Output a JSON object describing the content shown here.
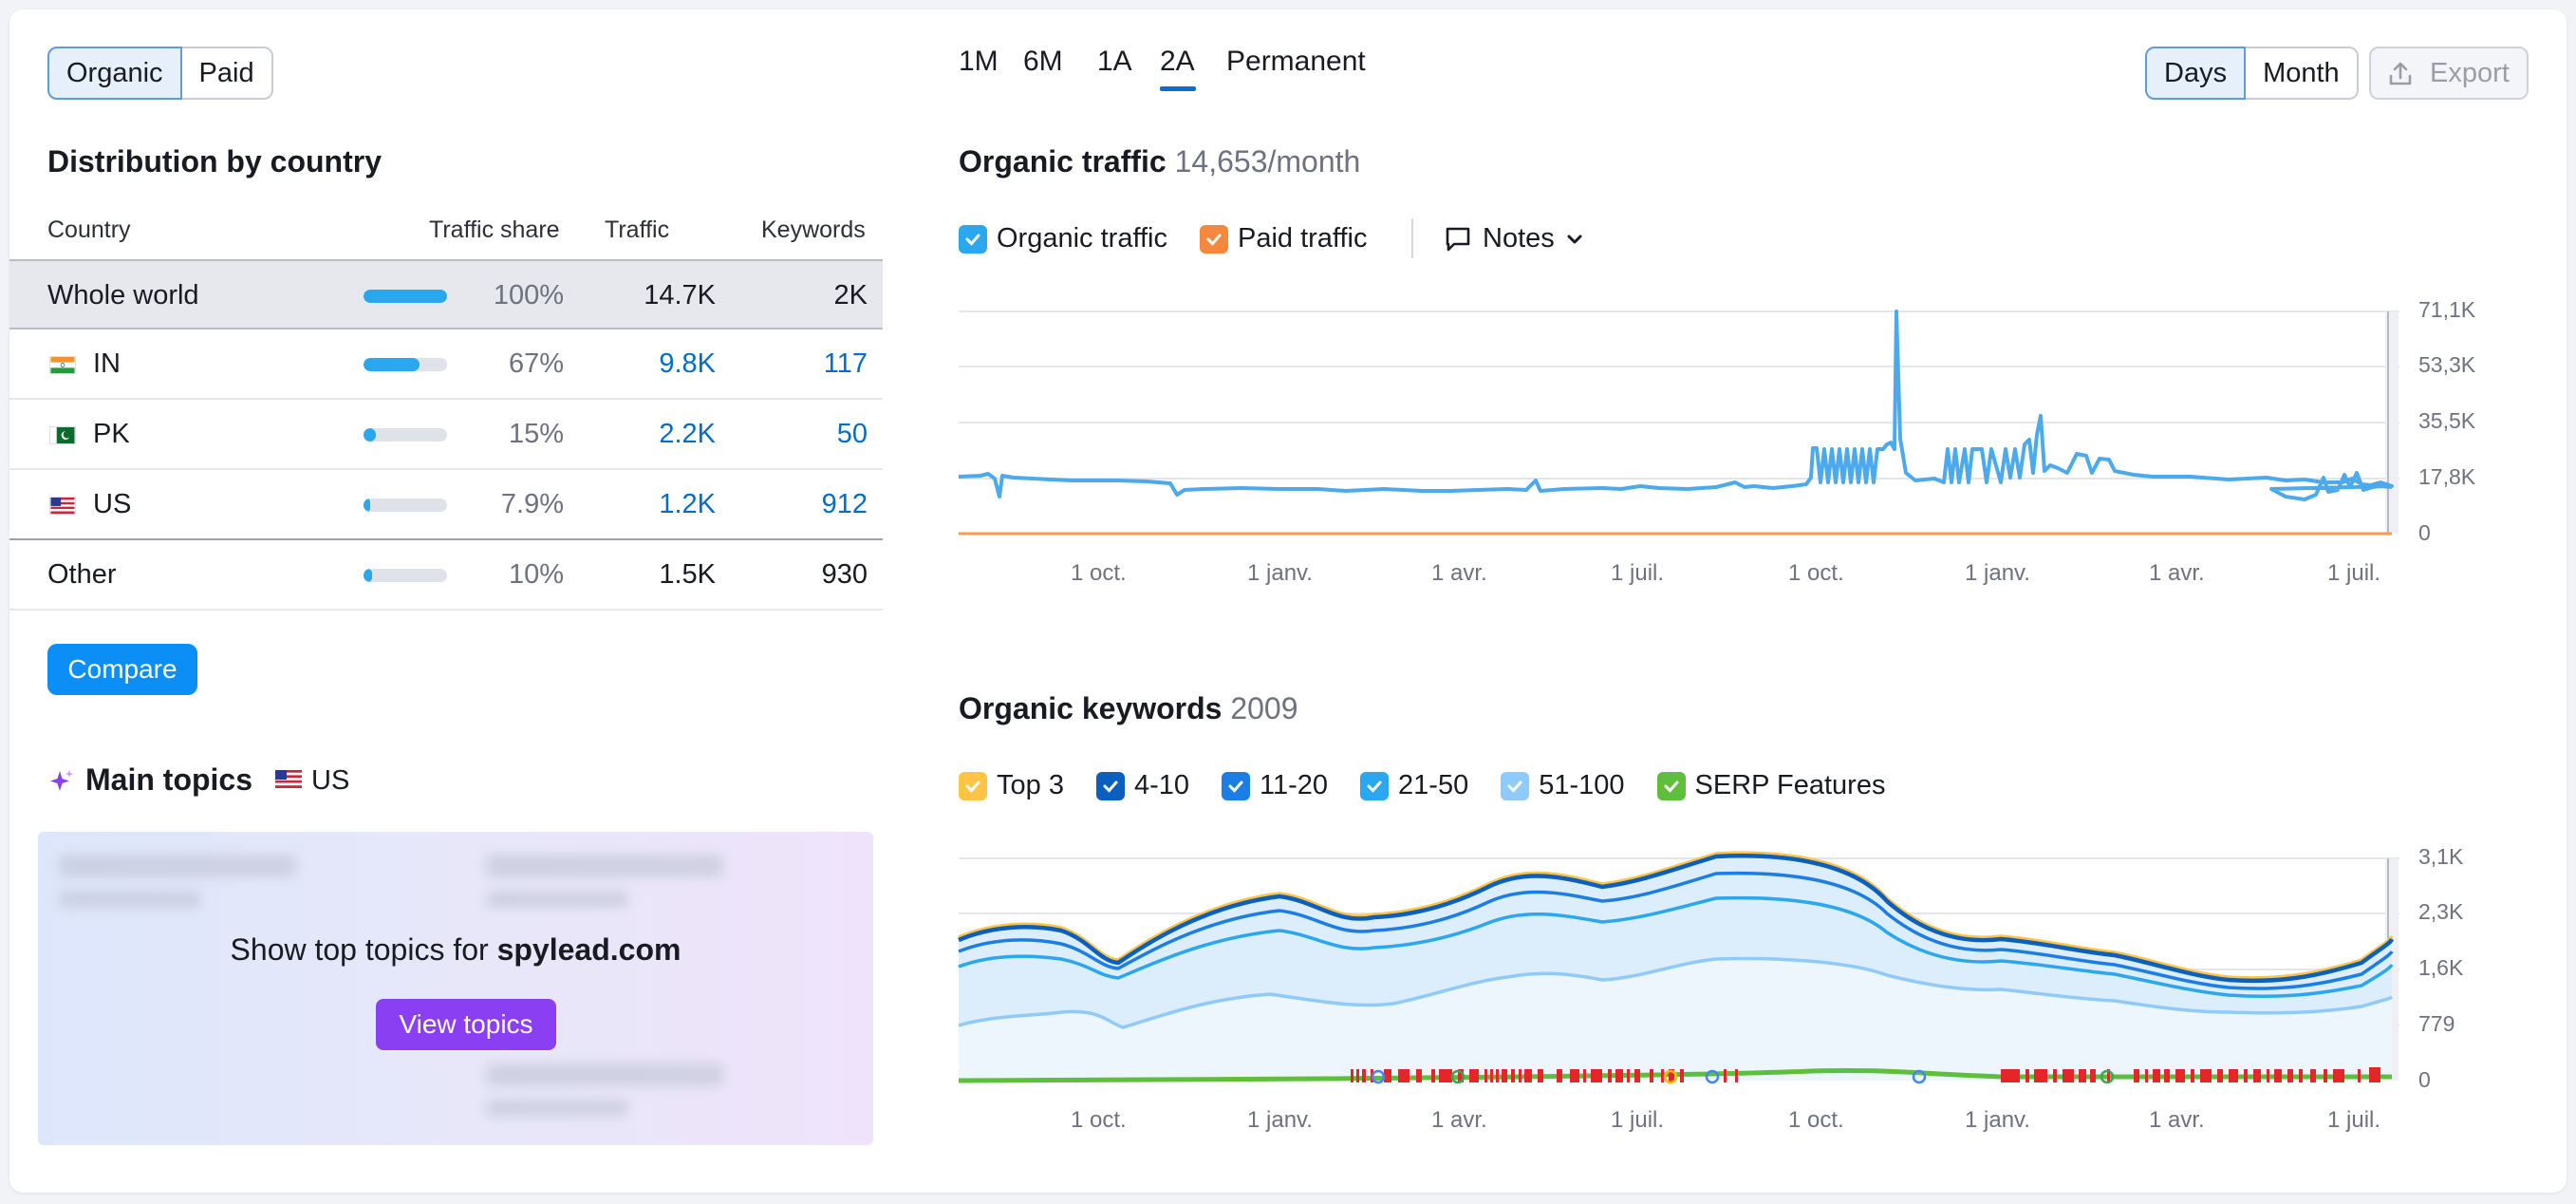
{
  "source_toggle": {
    "organic": "Organic",
    "paid": "Paid"
  },
  "distribution": {
    "title": "Distribution by country",
    "headers": {
      "country": "Country",
      "share": "Traffic share",
      "traffic": "Traffic",
      "keywords": "Keywords"
    },
    "rows": [
      {
        "country": "Whole world",
        "share": "100%",
        "share_value": 100,
        "traffic": "14.7K",
        "keywords": "2K"
      },
      {
        "country": "IN",
        "share": "67%",
        "share_value": 67,
        "traffic": "9.8K",
        "keywords": "117"
      },
      {
        "country": "PK",
        "share": "15%",
        "share_value": 15,
        "traffic": "2.2K",
        "keywords": "50"
      },
      {
        "country": "US",
        "share": "7.9%",
        "share_value": 7.9,
        "traffic": "1.2K",
        "keywords": "912"
      },
      {
        "country": "Other",
        "share": "10%",
        "share_value": 10,
        "traffic": "1.5K",
        "keywords": "930"
      }
    ],
    "compare_label": "Compare"
  },
  "topics": {
    "title": "Main topics",
    "country": "US",
    "prompt_prefix": "Show top topics for ",
    "domain": "spylead.com",
    "button": "View topics"
  },
  "periods": [
    "1M",
    "6M",
    "1A",
    "2A",
    "Permanent"
  ],
  "active_period": "2A",
  "granularity": {
    "days": "Days",
    "month": "Month"
  },
  "export_label": "Export",
  "traffic_chart": {
    "title": "Organic traffic",
    "value": "14,653/month",
    "legend": {
      "organic": "Organic traffic",
      "paid": "Paid traffic",
      "notes": "Notes"
    },
    "y_ticks": [
      "71,1K",
      "53,3K",
      "35,5K",
      "17,8K",
      "0"
    ],
    "x_ticks": [
      "1 oct.",
      "1 janv.",
      "1 avr.",
      "1 juil.",
      "1 oct.",
      "1 janv.",
      "1 avr.",
      "1 juil."
    ],
    "colors": {
      "organic": "#4ba9ec",
      "paid": "#f59c57"
    }
  },
  "keywords_chart": {
    "title": "Organic keywords",
    "value": "2009",
    "legend": {
      "top3": "Top 3",
      "k4_10": "4-10",
      "k11_20": "11-20",
      "k21_50": "21-50",
      "k51_100": "51-100",
      "serp": "SERP Features"
    },
    "y_ticks": [
      "3,1K",
      "2,3K",
      "1,6K",
      "779",
      "0"
    ],
    "x_ticks": [
      "1 oct.",
      "1 janv.",
      "1 avr.",
      "1 juil.",
      "1 oct.",
      "1 janv.",
      "1 avr.",
      "1 juil."
    ],
    "colors": {
      "top3": "#ffc445",
      "k4_10": "#0a5fbf",
      "k11_20": "#1c7ee4",
      "k21_50": "#2aa7ee",
      "k51_100": "#8fcaf8",
      "serp": "#5dbf3b"
    }
  }
}
